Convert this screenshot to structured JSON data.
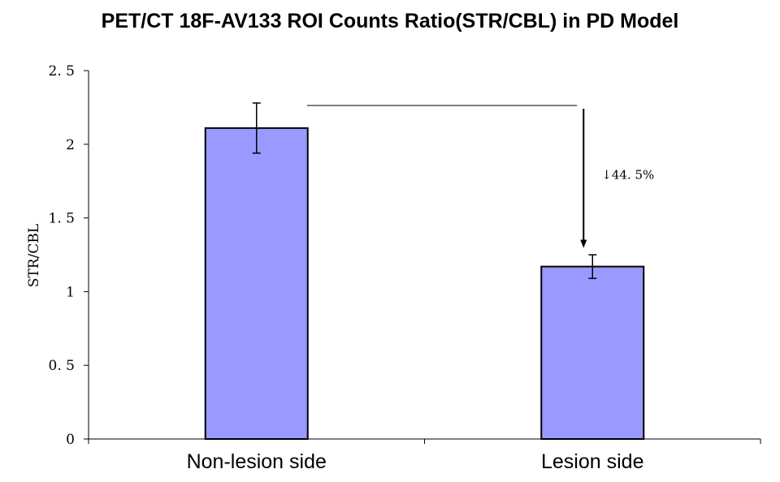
{
  "chart_data": {
    "type": "bar",
    "title": "PET/CT 18F-AV133 ROI Counts Ratio(STR/CBL)  in PD Model",
    "xlabel": "",
    "ylabel": "STR/CBL",
    "ylim": [
      0,
      2.5
    ],
    "yticks": [
      "0",
      "0. 5",
      "1",
      "1. 5",
      "2",
      "2. 5"
    ],
    "yticks_values": [
      0,
      0.5,
      1,
      1.5,
      2,
      2.5
    ],
    "categories": [
      "Non-lesion side",
      "Lesion side"
    ],
    "values": [
      2.11,
      1.17
    ],
    "error": [
      0.17,
      0.08
    ],
    "grid": false,
    "legend": "none",
    "bar_color": "#9999ff",
    "annotation": {
      "text": "↓44. 5%",
      "from": "Non-lesion side",
      "to": "Lesion side"
    }
  }
}
